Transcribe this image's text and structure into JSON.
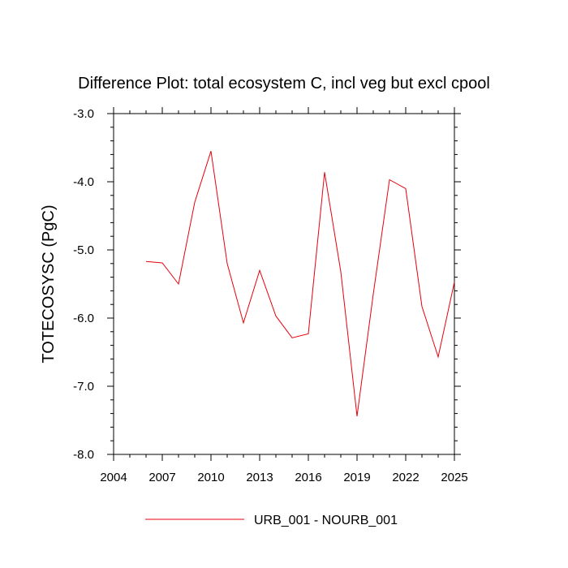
{
  "chart_data": {
    "type": "line",
    "title": "Difference Plot: total ecosystem C, incl veg but excl cpool",
    "xlabel": "",
    "ylabel": "TOTECOSYSC  (PgC)",
    "xlim": [
      2004,
      2025
    ],
    "ylim": [
      -8.0,
      -3.0
    ],
    "x_ticks": [
      2004,
      2007,
      2010,
      2013,
      2016,
      2019,
      2022,
      2025
    ],
    "y_ticks": [
      -8.0,
      -7.0,
      -6.0,
      -5.0,
      -4.0,
      -3.0
    ],
    "y_tick_labels": [
      "-8.0",
      "-7.0",
      "-6.0",
      "-5.0",
      "-4.0",
      "-3.0"
    ],
    "grid": false,
    "legend_position": "bottom",
    "series": [
      {
        "name": "URB_001 - NOURB_001",
        "color": "#e8000b",
        "x": [
          2006,
          2007,
          2008,
          2009,
          2010,
          2011,
          2012,
          2013,
          2014,
          2015,
          2016,
          2017,
          2018,
          2019,
          2020,
          2021,
          2022,
          2023,
          2024,
          2025
        ],
        "y": [
          -5.17,
          -5.19,
          -5.5,
          -4.3,
          -3.55,
          -5.2,
          -6.07,
          -5.3,
          -5.97,
          -6.29,
          -6.23,
          -3.86,
          -5.32,
          -7.44,
          -5.65,
          -3.97,
          -4.1,
          -5.83,
          -6.57,
          -5.47
        ]
      }
    ]
  }
}
